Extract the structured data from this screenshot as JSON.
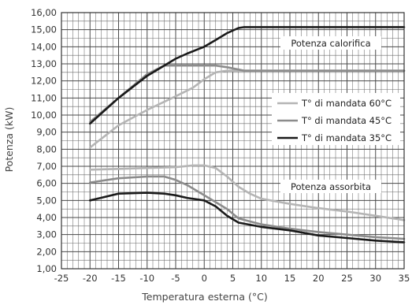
{
  "chart_data": {
    "type": "line",
    "xlabel": "Temperatura esterna  (°C)",
    "ylabel": "Potenza (kW)",
    "xlim": [
      -25,
      35
    ],
    "ylim": [
      1,
      16
    ],
    "x_ticks": [
      -25,
      -20,
      -15,
      -10,
      -5,
      0,
      5,
      10,
      15,
      20,
      25,
      30,
      35
    ],
    "x_tick_labels": [
      "-25",
      "-20",
      "-15",
      "-10",
      "-5",
      "0",
      "5",
      "10",
      "15",
      "20",
      "25",
      "30",
      "35"
    ],
    "y_ticks": [
      1,
      2,
      3,
      4,
      5,
      6,
      7,
      8,
      9,
      10,
      11,
      12,
      13,
      14,
      15,
      16
    ],
    "y_tick_labels": [
      "1,00",
      "2,00",
      "3,00",
      "4,00",
      "5,00",
      "6,00",
      "7,00",
      "8,00",
      "9,00",
      "10,00",
      "11,00",
      "12,00",
      "13,00",
      "14,00",
      "15,00",
      "16,00"
    ],
    "grid": true,
    "grid_minor": true,
    "legend_placement": "right",
    "annotations": {
      "heating": "Potenza calorifica",
      "absorbed": "Potenza assorbita"
    },
    "series": [
      {
        "name": "T° di mandata 60°C",
        "color": "#b5b5b5",
        "group": "Potenza calorifica",
        "x": [
          -20,
          -15,
          -10,
          -5,
          -2,
          0,
          2,
          4,
          7,
          10,
          15,
          20,
          25,
          30,
          35
        ],
        "y": [
          8.1,
          9.4,
          10.3,
          11.1,
          11.6,
          12.1,
          12.5,
          12.6,
          12.6,
          12.6,
          12.6,
          12.6,
          12.6,
          12.6,
          12.6
        ]
      },
      {
        "name": "T° di mandata 45°C",
        "color": "#8c8c8c",
        "group": "Potenza calorifica",
        "x": [
          -20,
          -15,
          -10,
          -7,
          -5,
          0,
          2,
          4,
          7,
          10,
          15,
          20,
          25,
          30,
          35
        ],
        "y": [
          9.6,
          11.0,
          12.4,
          12.9,
          12.9,
          12.9,
          12.9,
          12.8,
          12.6,
          12.6,
          12.6,
          12.6,
          12.6,
          12.6,
          12.6
        ]
      },
      {
        "name": "T° di mandata 35°C",
        "color": "#1a1a1a",
        "group": "Potenza calorifica",
        "x": [
          -20,
          -15,
          -10,
          -7,
          -5,
          -3,
          0,
          2,
          4,
          6,
          7,
          10,
          15,
          20,
          25,
          30,
          35
        ],
        "y": [
          9.5,
          11.0,
          12.3,
          12.9,
          13.3,
          13.6,
          14.0,
          14.4,
          14.8,
          15.1,
          15.15,
          15.15,
          15.15,
          15.15,
          15.15,
          15.15,
          15.15
        ]
      },
      {
        "name": "T° di mandata 60°C",
        "color": "#b5b5b5",
        "group": "Potenza assorbita",
        "x": [
          -20,
          -15,
          -10,
          -5,
          -2,
          0,
          2,
          4,
          6,
          8,
          10,
          15,
          20,
          25,
          30,
          35
        ],
        "y": [
          6.8,
          6.85,
          6.9,
          6.95,
          7.05,
          7.05,
          6.9,
          6.4,
          5.8,
          5.4,
          5.1,
          4.8,
          4.55,
          4.35,
          4.1,
          3.85
        ]
      },
      {
        "name": "T° di mandata 45°C",
        "color": "#8c8c8c",
        "group": "Potenza assorbita",
        "x": [
          -20,
          -15,
          -10,
          -7,
          -5,
          -3,
          0,
          2,
          4,
          6,
          10,
          15,
          20,
          25,
          30,
          35
        ],
        "y": [
          6.05,
          6.3,
          6.4,
          6.4,
          6.2,
          5.9,
          5.3,
          4.9,
          4.5,
          3.95,
          3.6,
          3.35,
          3.15,
          3.0,
          2.85,
          2.75
        ]
      },
      {
        "name": "T° di mandata 35°C",
        "color": "#1a1a1a",
        "group": "Potenza assorbita",
        "x": [
          -20,
          -15,
          -10,
          -7,
          -5,
          -3,
          0,
          2,
          4,
          6,
          10,
          15,
          20,
          25,
          30,
          35
        ],
        "y": [
          5.0,
          5.4,
          5.45,
          5.4,
          5.3,
          5.15,
          5.0,
          4.65,
          4.1,
          3.7,
          3.45,
          3.25,
          2.95,
          2.8,
          2.65,
          2.55
        ]
      }
    ],
    "legend": [
      {
        "label": "T° di mandata 60°C",
        "color": "#b5b5b5"
      },
      {
        "label": "T° di mandata 45°C",
        "color": "#8c8c8c"
      },
      {
        "label": "T° di mandata 35°C",
        "color": "#1a1a1a"
      }
    ]
  }
}
